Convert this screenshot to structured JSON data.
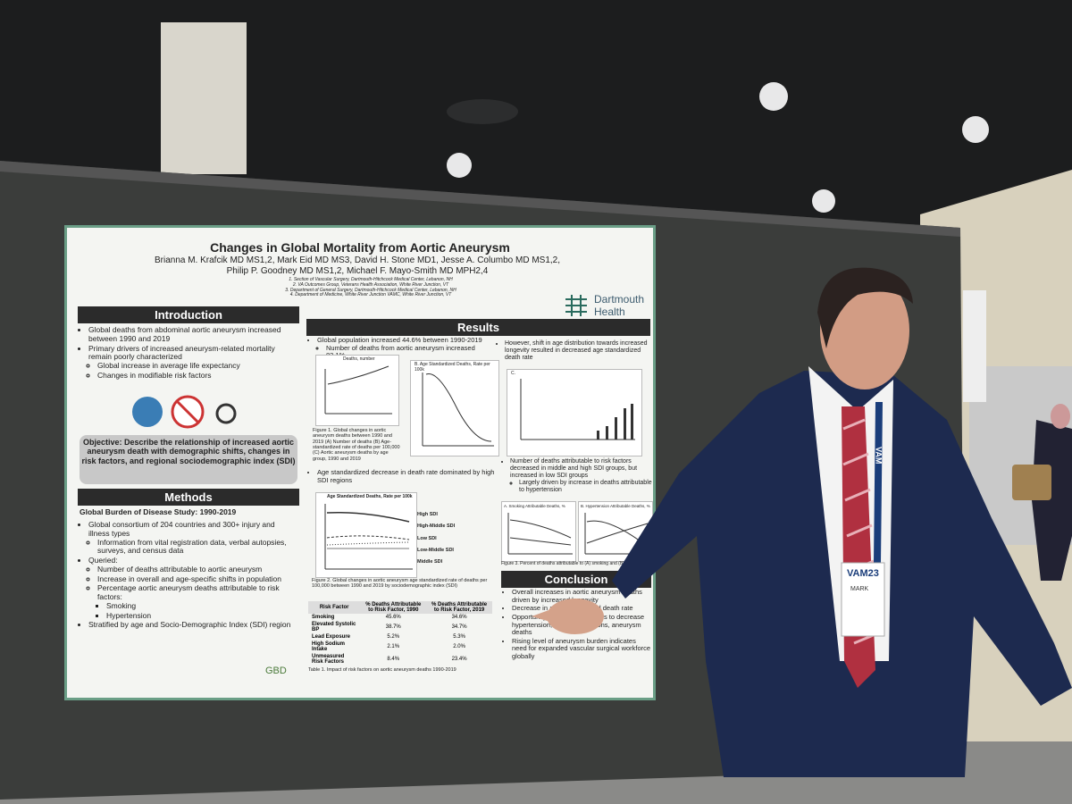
{
  "poster": {
    "title": "Changes in Global Mortality from Aortic Aneurysm",
    "authors": [
      "Brianna M. Krafcik MD MS1,2, Mark Eid MD MS3, David H. Stone MD1, Jesse A. Columbo MD MS1,2,",
      "Philip P. Goodney MD MS1,2, Michael F. Mayo-Smith MD MPH2,4"
    ],
    "affiliations": [
      "1. Section of Vascular Surgery, Dartmouth-Hitchcock Medical Center, Lebanon, NH",
      "2. VA Outcomes Group, Veterans Health Association, White River Junction, VT",
      "3. Department of General Surgery, Dartmouth-Hitchcock Medical Center, Lebanon, NH",
      "4. Department of Medicine, White River Junction VAMC, White River Junction, VT"
    ],
    "logo": "Dartmouth Health",
    "introduction": {
      "heading": "Introduction",
      "bullets": [
        {
          "text": "Global deaths from abdominal aortic aneurysm increased between 1990 and 2019"
        },
        {
          "text": "Primary drivers of increased aneurysm-related mortality remain poorly characterized",
          "sub": [
            {
              "text": "Global increase in average life expectancy"
            },
            {
              "text": "Changes in modifiable risk factors"
            }
          ]
        }
      ],
      "objective": "Objective: Describe the relationship of increased aortic aneurysm death with demographic shifts, changes in risk factors, and regional sociodemographic index (SDI)"
    },
    "methods": {
      "heading": "Methods",
      "subheading": "Global Burden of Disease Study: 1990-2019",
      "bullets": [
        {
          "text": "Global consortium of 204 countries and 300+ injury and illness types",
          "sub": [
            {
              "text": "Information from vital registration data, verbal autopsies, surveys, and census data"
            }
          ]
        },
        {
          "text": "Queried:",
          "sub": [
            {
              "text": "Number of deaths attributable to aortic aneurysm"
            },
            {
              "text": "Increase in overall and age-specific shifts in population"
            },
            {
              "text": "Percentage aortic aneurysm deaths attributable to risk factors:",
              "sub": [
                {
                  "text": "Smoking"
                },
                {
                  "text": "Hypertension"
                }
              ]
            }
          ]
        },
        {
          "text": "Stratified by age and Socio-Demographic Index (SDI) region"
        }
      ]
    },
    "gbd": "GBD",
    "results": {
      "heading": "Results",
      "left_bullets": [
        {
          "text": "Global population increased 44.6% between 1990-2019",
          "sub": [
            {
              "text": "Number of deaths from aortic aneurysm increased 82.1%"
            }
          ]
        }
      ],
      "right_bullets": [
        {
          "text": "However, shift in age distribution towards increased longevity resulted in decreased age standardized death rate"
        }
      ],
      "fig1_titles": [
        "Deaths, number",
        "B. Age Standardized Deaths, Rate per 100k",
        "C."
      ],
      "fig1_caption": "Figure 1. Global changes in aortic aneurysm deaths between 1990 and 2019 (A) Number of deaths (B) Age-standardized rate of deaths per 100,000 (C) Aortic aneurysm deaths by age group, 1990 and 2019",
      "mid_bullets": [
        {
          "text": "Age standardized decrease in death rate dominated by high SDI regions"
        }
      ],
      "fig2_title": "Age Standardized Deaths, Rate per 100k",
      "fig2_legend": [
        "High SDI",
        "High-Middle SDI",
        "Low SDI",
        "Low-Middle SDI",
        "Middle SDI"
      ],
      "fig2_caption": "Figure 2. Global changes in aortic aneurysm age standardized rate of deaths per 100,000 between 1990 and 2019 by sociodemographic index (SDI)",
      "risk_bullets": [
        {
          "text": "Number of deaths attributable to risk factors decreased in middle and high SDI groups, but increased in low SDI groups",
          "sub": [
            {
              "text": "Largely driven by increase in deaths attributable to hypertension"
            }
          ]
        }
      ],
      "fig3_titles": [
        "A. Smoking Attributable Deaths, %",
        "B. Hypertension Attributable Deaths, %"
      ],
      "fig3_caption": "Figure 3. Percent of deaths attributable to (A) smoking and (B) hypertension"
    },
    "table": {
      "header": [
        "Risk Factor",
        "% Deaths Attributable to Risk Factor, 1990",
        "% Deaths Attributable to Risk Factor, 2019"
      ],
      "rows": [
        [
          "Smoking",
          "45.6%",
          "34.6%"
        ],
        [
          "Elevated Systolic BP",
          "38.7%",
          "34.7%"
        ],
        [
          "Lead Exposure",
          "5.2%",
          "5.3%"
        ],
        [
          "High Sodium Intake",
          "2.1%",
          "2.0%"
        ],
        [
          "Unmeasured Risk Factors",
          "8.4%",
          "23.4%"
        ]
      ],
      "caption": "Table 1. Impact of risk factors on aortic aneurysm deaths 1990-2019"
    },
    "conclusion": {
      "heading": "Conclusion",
      "bullets": [
        {
          "text": "Overall increases in aortic aneurysm deaths driven by increased longevity"
        },
        {
          "text": "Decrease in age standardized death rate"
        },
        {
          "text": "Opportunity to target risk factors to decrease hypertension, in low SDI regions, aneurysm deaths"
        },
        {
          "text": "Rising level of aneurysm burden indicates need for expanded vascular surgical workforce globally"
        }
      ]
    }
  },
  "badge": {
    "event": "VAM23",
    "name": "MARK",
    "lanyard": "VAM"
  }
}
